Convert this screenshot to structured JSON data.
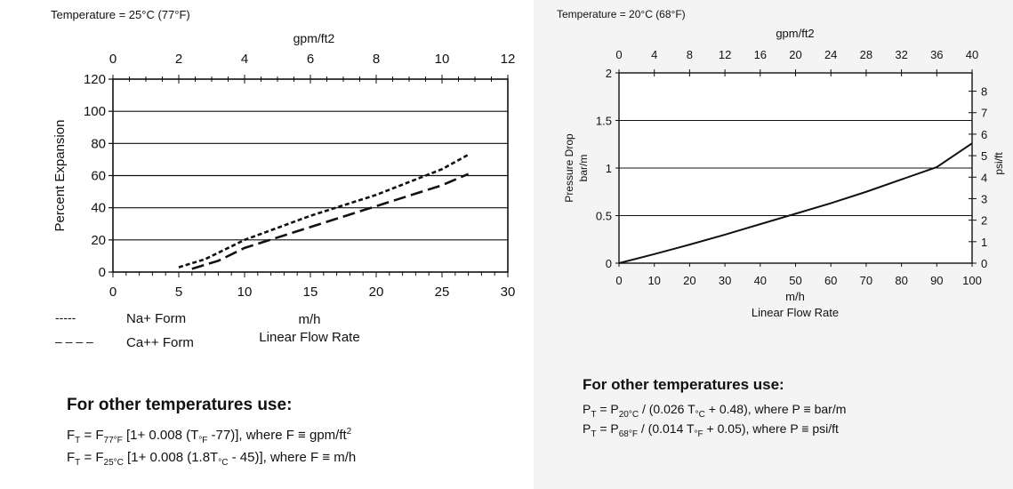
{
  "left": {
    "temperature_label": "Temperature = 25°C (77°F)",
    "note_title": "For other temperatures use:",
    "formula1": {
      "a": "F",
      "a_sub": "T",
      "b": " = F",
      "b_sub": "77°F",
      "c": " [1+ 0.008 (T",
      "c_sub": "°F",
      "d": " -77)], where F ≡ gpm/ft",
      "sup": "2"
    },
    "formula2": {
      "a": "F",
      "a_sub": "T",
      "b": " = F",
      "b_sub": "25°C",
      "c": " [1+ 0.008 (1.8T",
      "c_sub": "°C",
      "d": " - 45)], where F ≡ m/h"
    }
  },
  "right": {
    "temperature_label": "Temperature = 20°C (68°F)",
    "note_title": "For other temperatures use:",
    "formula1": {
      "a": "P",
      "a_sub": "T",
      "b": " = P",
      "b_sub": "20°C",
      "c": " / (0.026 T",
      "c_sub": "°C",
      "d": " + 0.48), where P ≡ bar/m"
    },
    "formula2": {
      "a": "P",
      "a_sub": "T",
      "b": " = P",
      "b_sub": "68°F",
      "c": " / (0.014 T",
      "c_sub": "°F",
      "d": " + 0.05), where P ≡ psi/ft"
    }
  },
  "colors": {
    "line": "#111111",
    "grid": "#111111",
    "background_right": "#f4f4f4"
  },
  "chart_data": [
    {
      "type": "line",
      "title": "Temperature = 25°C (77°F)",
      "xlabel": "m/h",
      "xlabel2": "Linear Flow Rate",
      "ylabel": "Percent Expansion",
      "x2label": "gpm/ft2",
      "xlim": [
        0,
        30
      ],
      "ylim": [
        0,
        120
      ],
      "x2lim": [
        0,
        12
      ],
      "x_ticks": [
        0,
        5,
        10,
        15,
        20,
        25,
        30
      ],
      "y_ticks": [
        0,
        20,
        40,
        60,
        80,
        100,
        120
      ],
      "x2_ticks": [
        0,
        2,
        4,
        6,
        8,
        10,
        12
      ],
      "series": [
        {
          "name": "Na+ Form",
          "style": "dotted",
          "x": [
            5,
            7,
            10,
            15,
            20,
            25,
            27
          ],
          "y": [
            3,
            8,
            20,
            35,
            48,
            64,
            73
          ]
        },
        {
          "name": "Ca++ Form",
          "style": "dashed",
          "x": [
            6,
            8,
            10,
            15,
            20,
            25,
            27
          ],
          "y": [
            2,
            7,
            15,
            28,
            41,
            54,
            61
          ]
        }
      ],
      "legend": [
        {
          "marker": "-----",
          "label": "Na+ Form"
        },
        {
          "marker": "– – – –",
          "label": "Ca++ Form"
        }
      ]
    },
    {
      "type": "line",
      "title": "Temperature = 20°C (68°F)",
      "xlabel": "m/h",
      "xlabel2": "Linear Flow Rate",
      "ylabel": "Pressure Drop",
      "ylabel2": "bar/m",
      "y2label": "psi/ft",
      "x2label": "gpm/ft2",
      "xlim": [
        0,
        100
      ],
      "ylim": [
        0,
        2
      ],
      "y2lim": [
        0,
        8.85
      ],
      "x2lim": [
        0,
        40
      ],
      "x_ticks": [
        0,
        10,
        20,
        30,
        40,
        50,
        60,
        70,
        80,
        90,
        100
      ],
      "y_ticks": [
        0,
        0.5,
        1,
        1.5,
        2
      ],
      "y_tick_labels": [
        "0",
        "0.5",
        "1",
        "1.5",
        "2"
      ],
      "y2_ticks": [
        0,
        1,
        2,
        3,
        4,
        5,
        6,
        7,
        8
      ],
      "x2_ticks": [
        0,
        4,
        8,
        12,
        16,
        20,
        24,
        28,
        32,
        36,
        40
      ],
      "series": [
        {
          "name": "Pressure Drop",
          "style": "solid",
          "x": [
            0,
            10,
            20,
            30,
            40,
            50,
            60,
            70,
            80,
            90,
            100
          ],
          "y": [
            0,
            0.095,
            0.195,
            0.3,
            0.41,
            0.52,
            0.63,
            0.75,
            0.88,
            1.01,
            1.26
          ]
        }
      ]
    }
  ]
}
